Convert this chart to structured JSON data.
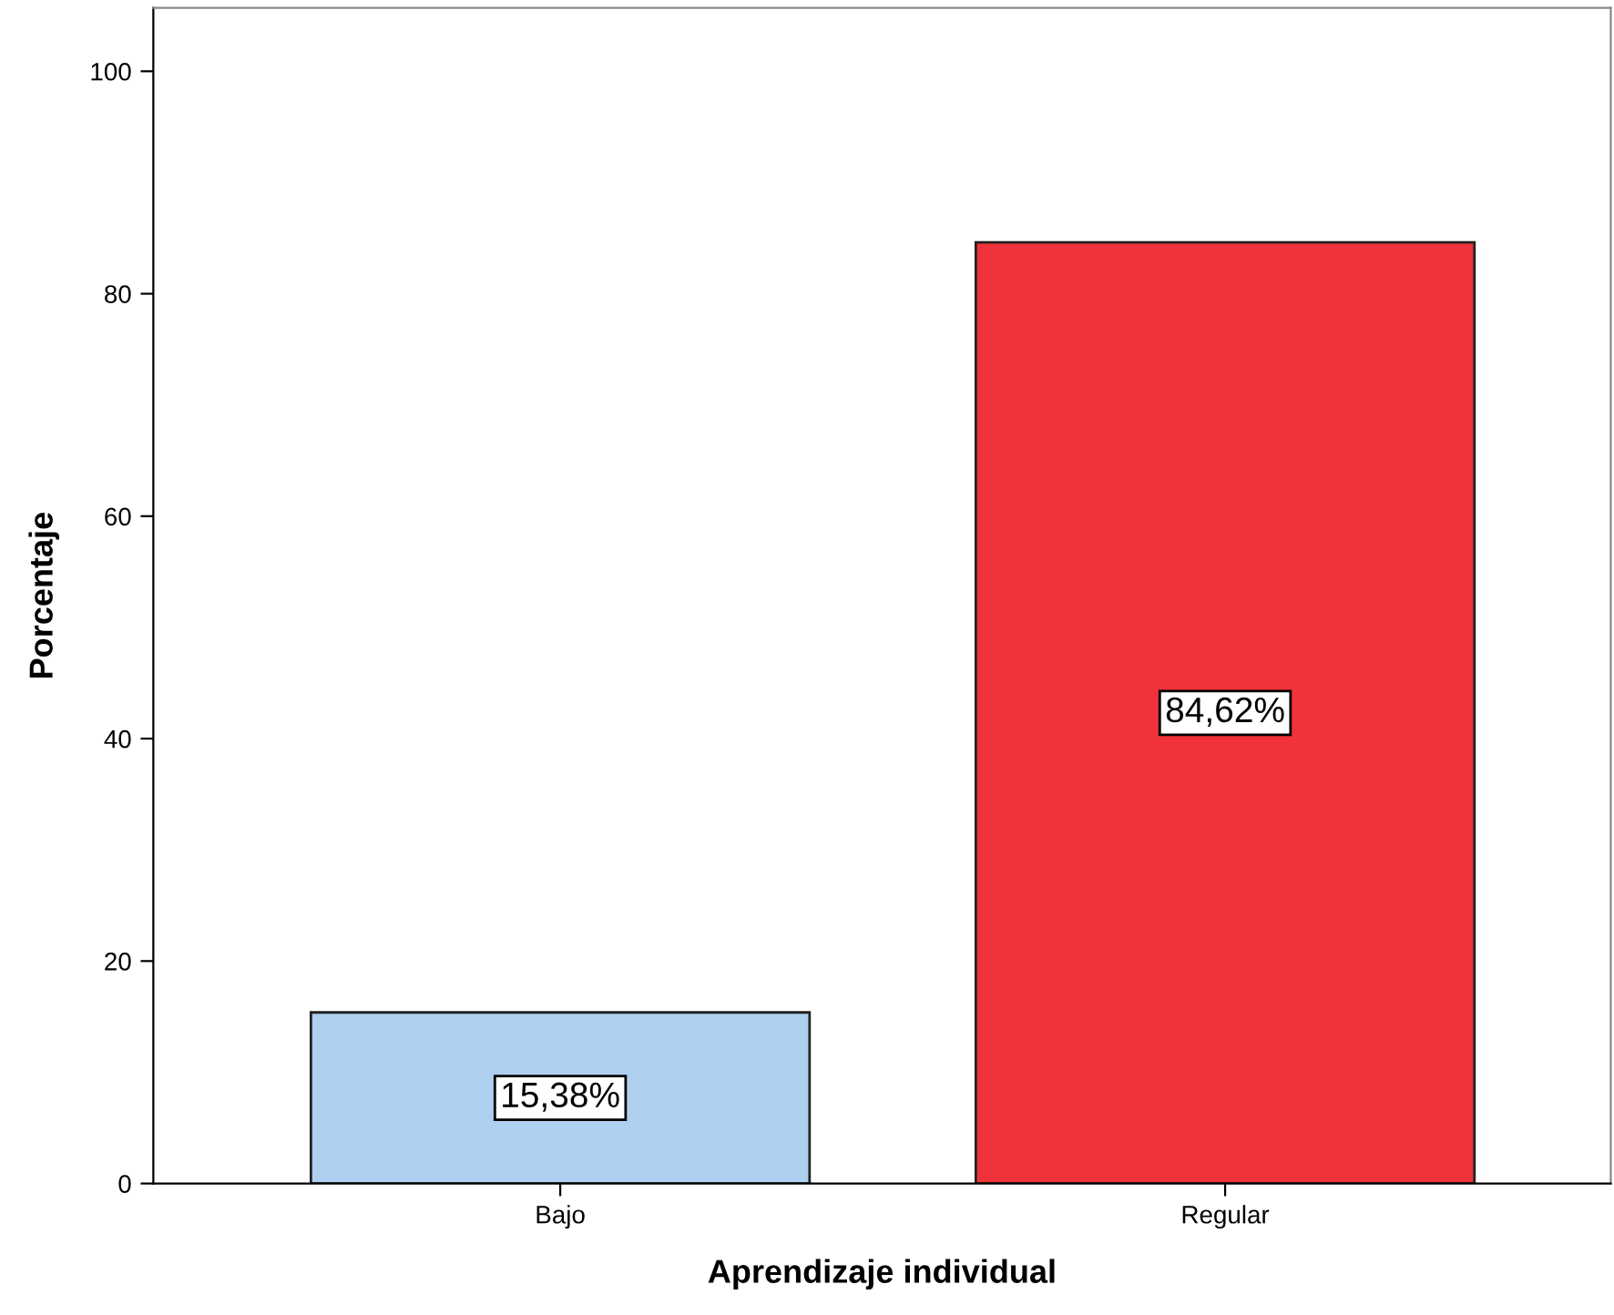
{
  "chart_data": {
    "type": "bar",
    "xlabel": "Aprendizaje individual",
    "ylabel": "Porcentaje",
    "categories": [
      "Bajo",
      "Regular"
    ],
    "values": [
      15.38,
      84.62
    ],
    "colors": [
      "#aecfee",
      "#f0323a"
    ],
    "value_labels": [
      "15,38%",
      "84,62%"
    ],
    "ylim": [
      0,
      105.7
    ],
    "yticks": [
      0,
      20,
      40,
      60,
      80,
      100
    ],
    "grid": false,
    "legend": false
  }
}
